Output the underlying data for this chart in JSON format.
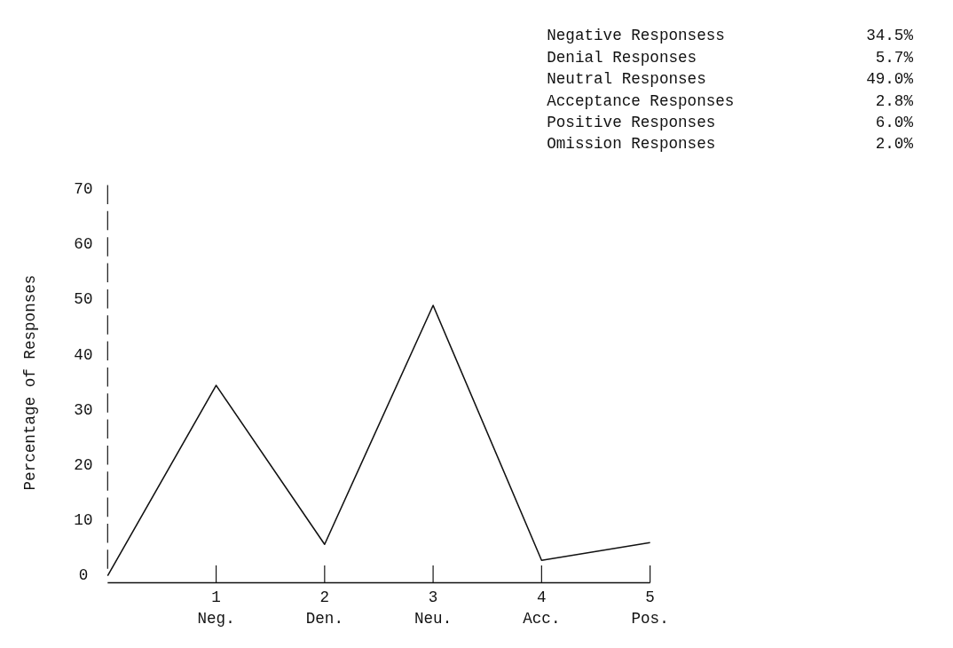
{
  "chart_data": {
    "type": "line",
    "ylabel": "Percentage of Responses",
    "x": [
      0,
      1,
      2,
      3,
      4,
      5
    ],
    "series": [
      {
        "color": "#111111",
        "values": [
          0,
          34.5,
          5.7,
          49.0,
          2.8,
          6.0
        ]
      }
    ],
    "xlim": [
      0,
      5
    ],
    "xticks": [
      {
        "value": 1,
        "label": "1\nNeg."
      },
      {
        "value": 2,
        "label": "2\nDen."
      },
      {
        "value": 3,
        "label": "3\nNeu."
      },
      {
        "value": 4,
        "label": "4\nAcc."
      },
      {
        "value": 5,
        "label": "5\nPos."
      }
    ],
    "ylim": [
      0,
      70
    ],
    "yticks": [
      0,
      10,
      20,
      30,
      40,
      50,
      60,
      70
    ],
    "grid": false,
    "marker": "none",
    "line_style": "solid",
    "annotations": [
      "Negative Responsess",
      "34.5%",
      "Denial Responses",
      "5.7%",
      "Neutral Responses",
      "49.0%",
      "Acceptance Responses",
      "2.8%",
      "Positive Responses",
      "6.0%",
      "Omission Responses",
      "2.0%"
    ]
  }
}
